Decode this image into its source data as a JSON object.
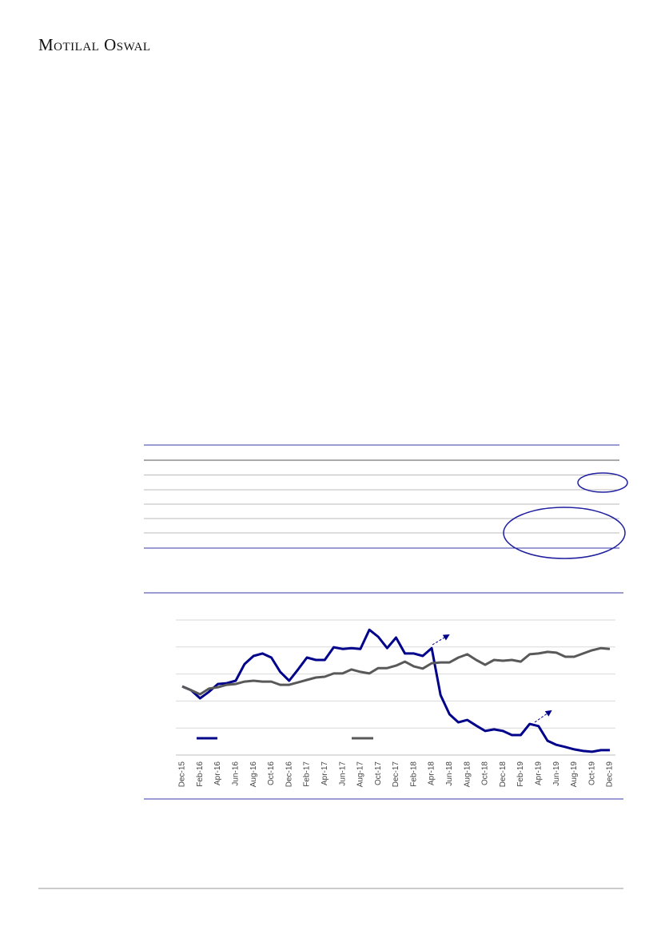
{
  "header": {
    "logo": "Motilal Oswal"
  },
  "chart_data": {
    "type": "line",
    "categories": [
      "Dec-15",
      null,
      "Feb-16",
      null,
      "Apr-16",
      null,
      "Jun-16",
      null,
      "Aug-16",
      null,
      "Oct-16",
      null,
      "Dec-16",
      null,
      "Feb-17",
      null,
      "Apr-17",
      null,
      "Jun-17",
      null,
      "Aug-17",
      null,
      "Oct-17",
      null,
      "Dec-17",
      null,
      "Feb-18",
      null,
      "Apr-18",
      null,
      "Jun-18",
      null,
      "Aug-18",
      null,
      "Oct-18",
      null,
      "Dec-18",
      null,
      "Feb-19",
      null,
      "Apr-19",
      null,
      "Jun-19",
      null,
      "Aug-19",
      null,
      "Oct-19",
      null,
      "Dec-19"
    ],
    "series": [
      {
        "color": "#00008b",
        "values": [
          2.54,
          2.4,
          2.1,
          2.34,
          2.63,
          2.66,
          2.75,
          3.37,
          3.67,
          3.76,
          3.61,
          3.08,
          2.75,
          3.17,
          3.61,
          3.52,
          3.52,
          3.99,
          3.93,
          3.96,
          3.93,
          4.64,
          4.38,
          3.96,
          4.35,
          3.76,
          3.76,
          3.67,
          3.96,
          2.22,
          1.51,
          1.21,
          1.3,
          1.09,
          0.89,
          0.95,
          0.89,
          0.74,
          0.74,
          1.15,
          1.07,
          0.53,
          0.38,
          0.3,
          0.21,
          0.15,
          0.12,
          0.18,
          0.18
        ]
      },
      {
        "color": "#595959",
        "values": [
          2.54,
          2.4,
          2.25,
          2.46,
          2.51,
          2.6,
          2.63,
          2.72,
          2.75,
          2.72,
          2.72,
          2.6,
          2.6,
          2.69,
          2.78,
          2.87,
          2.9,
          3.02,
          3.02,
          3.17,
          3.08,
          3.02,
          3.22,
          3.22,
          3.31,
          3.46,
          3.28,
          3.2,
          3.4,
          3.43,
          3.43,
          3.61,
          3.73,
          3.52,
          3.34,
          3.52,
          3.49,
          3.52,
          3.46,
          3.73,
          3.76,
          3.82,
          3.79,
          3.64,
          3.64,
          3.76,
          3.88,
          3.96,
          3.93
        ]
      }
    ],
    "ylim": [
      0,
      5
    ],
    "ygrid": [
      1,
      2,
      3,
      4,
      5
    ],
    "grid": true
  }
}
